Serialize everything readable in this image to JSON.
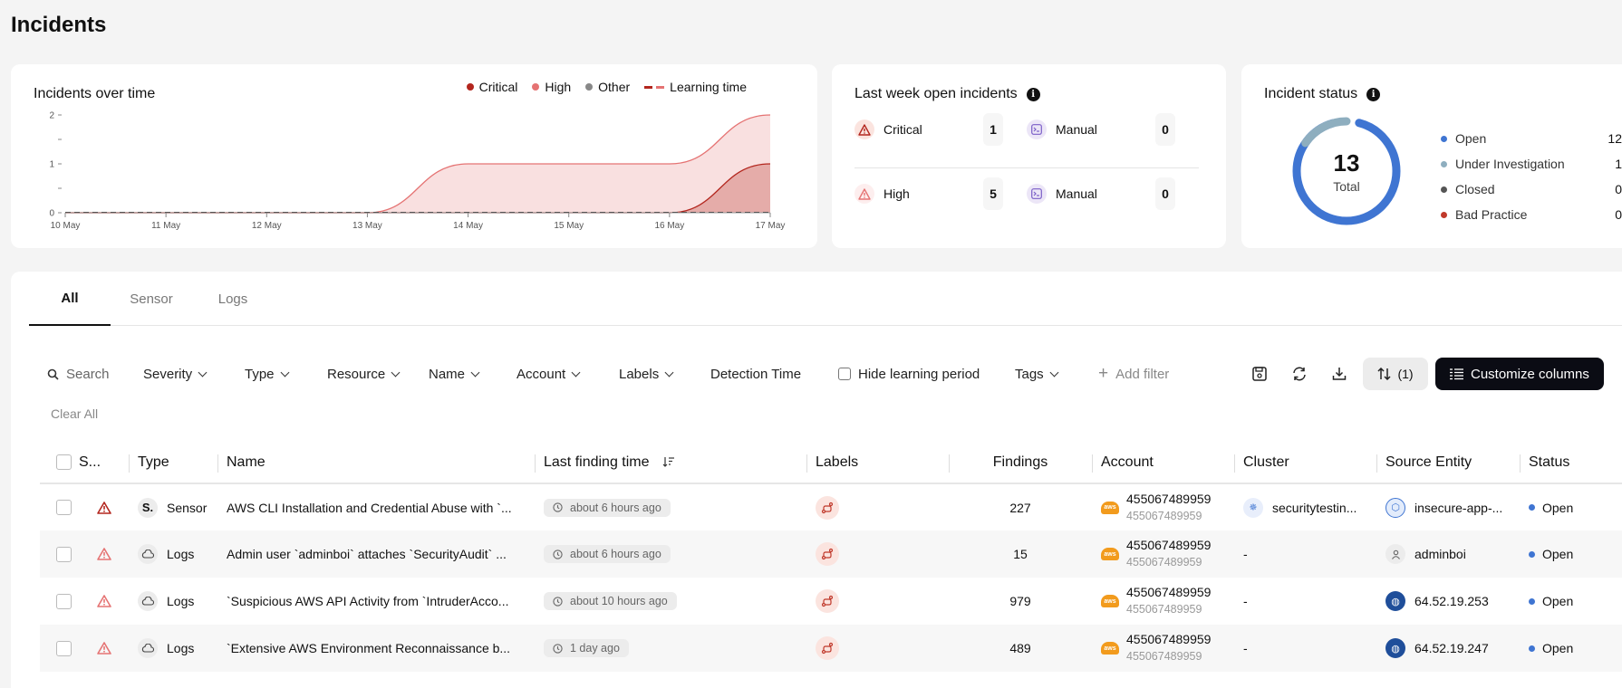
{
  "page": {
    "title": "Incidents"
  },
  "chart_card": {
    "title": "Incidents over time",
    "legend": [
      {
        "label": "Critical",
        "color": "#b3261e"
      },
      {
        "label": "High",
        "color": "#e57373"
      },
      {
        "label": "Other",
        "color": "#888888"
      },
      {
        "label": "Learning time",
        "color": "#b3261e"
      }
    ]
  },
  "chart_data": {
    "type": "area",
    "title": "Incidents over time",
    "x": [
      "10 May",
      "11 May",
      "12 May",
      "13 May",
      "14 May",
      "15 May",
      "16 May",
      "17 May"
    ],
    "y_ticks": [
      "0",
      "1",
      "2"
    ],
    "ylim": [
      0,
      2
    ],
    "series": [
      {
        "name": "High",
        "color": "#e57373",
        "values": [
          0,
          0,
          0,
          0,
          1,
          1,
          1,
          2
        ]
      },
      {
        "name": "Critical",
        "color": "#b3261e",
        "values": [
          0,
          0,
          0,
          0,
          0,
          0,
          0,
          1
        ]
      }
    ],
    "grid": false,
    "legend_position": "top-right"
  },
  "last_week": {
    "title": "Last week open incidents",
    "rows": [
      {
        "severity": "Critical",
        "count": "1",
        "manual_label": "Manual",
        "manual_count": "0"
      },
      {
        "severity": "High",
        "count": "5",
        "manual_label": "Manual",
        "manual_count": "0"
      }
    ]
  },
  "status": {
    "title": "Incident status",
    "total": "13",
    "total_label": "Total",
    "items": [
      {
        "label": "Open",
        "value": "12",
        "color": "#3f75d2"
      },
      {
        "label": "Under Investigation",
        "value": "1",
        "color": "#8eaebf"
      },
      {
        "label": "Closed",
        "value": "0",
        "color": "#555555"
      },
      {
        "label": "Bad Practice",
        "value": "0",
        "color": "#c0392b"
      }
    ]
  },
  "tabs": [
    "All",
    "Sensor",
    "Logs"
  ],
  "filters": {
    "search": "Search",
    "severity": "Severity",
    "type": "Type",
    "resource": "Resource",
    "name": "Name",
    "account": "Account",
    "labels": "Labels",
    "detection_time": "Detection Time",
    "hide_learning": "Hide learning period",
    "tags": "Tags",
    "add_filter": "Add filter",
    "clear_all": "Clear All",
    "sort_count": "(1)",
    "customize": "Customize columns"
  },
  "table": {
    "headers": [
      "S...",
      "Type",
      "Name",
      "Last finding time",
      "Labels",
      "Findings",
      "Account",
      "Cluster",
      "Source Entity",
      "Status"
    ],
    "rows": [
      {
        "type": "Sensor",
        "name": "AWS CLI Installation and Credential Abuse with `...",
        "time": "about 6 hours ago",
        "findings": "227",
        "account": "455067489959",
        "account_sub": "455067489959",
        "cluster": "securitytestin...",
        "entity": "insecure-app-...",
        "status": "Open"
      },
      {
        "type": "Logs",
        "name": "Admin user `adminboi` attaches `SecurityAudit` ...",
        "time": "about 6 hours ago",
        "findings": "15",
        "account": "455067489959",
        "account_sub": "455067489959",
        "cluster": "-",
        "entity": "adminboi",
        "status": "Open"
      },
      {
        "type": "Logs",
        "name": "`Suspicious AWS API Activity from `IntruderAcco...",
        "time": "about 10 hours ago",
        "findings": "979",
        "account": "455067489959",
        "account_sub": "455067489959",
        "cluster": "-",
        "entity": "64.52.19.253",
        "status": "Open"
      },
      {
        "type": "Logs",
        "name": "`Extensive AWS Environment Reconnaissance b...",
        "time": "1 day ago",
        "findings": "489",
        "account": "455067489959",
        "account_sub": "455067489959",
        "cluster": "-",
        "entity": "64.52.19.247",
        "status": "Open"
      }
    ]
  }
}
